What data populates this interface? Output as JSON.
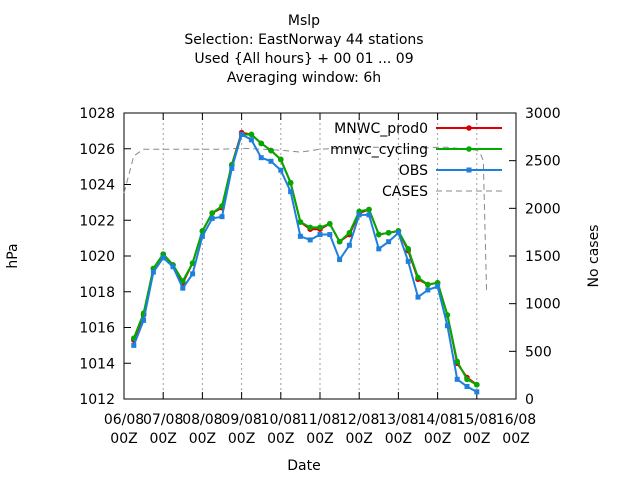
{
  "chart_data": {
    "type": "line",
    "title_lines": [
      "Mslp",
      "Selection: EastNorway     44 stations",
      "Used {All hours} + 00 01 ... 09",
      "Averaging window:  6h"
    ],
    "xlabel": "Date",
    "ylabel": "hPa",
    "y2label": "No cases",
    "xlim": [
      0,
      240
    ],
    "ylim": [
      1012,
      1028
    ],
    "y2lim": [
      0,
      3000
    ],
    "x_ticks": [
      {
        "x": 0,
        "line1": "06/08",
        "line2": "00Z"
      },
      {
        "x": 24,
        "line1": "07/08",
        "line2": "00Z"
      },
      {
        "x": 48,
        "line1": "08/08",
        "line2": "00Z"
      },
      {
        "x": 72,
        "line1": "09/08",
        "line2": "00Z"
      },
      {
        "x": 96,
        "line1": "10/08",
        "line2": "00Z"
      },
      {
        "x": 120,
        "line1": "11/08",
        "line2": "00Z"
      },
      {
        "x": 144,
        "line1": "12/08",
        "line2": "00Z"
      },
      {
        "x": 168,
        "line1": "13/08",
        "line2": "00Z"
      },
      {
        "x": 192,
        "line1": "14/08",
        "line2": "00Z"
      },
      {
        "x": 216,
        "line1": "15/08",
        "line2": "00Z"
      },
      {
        "x": 240,
        "line1": "16/08",
        "line2": "00Z"
      }
    ],
    "y_ticks": [
      1012,
      1014,
      1016,
      1018,
      1020,
      1022,
      1024,
      1026,
      1028
    ],
    "y2_ticks": [
      0,
      500,
      1000,
      1500,
      2000,
      2500,
      3000
    ],
    "legend_position": "top-right",
    "series": [
      {
        "name": "MNWC_prod0",
        "color": "#dd0000",
        "marker": "circle",
        "axis": "y",
        "x": [
          6,
          12,
          18,
          24,
          30,
          36,
          42,
          48,
          54,
          60,
          66,
          72,
          78,
          84,
          90,
          96,
          102,
          108,
          114,
          120,
          126,
          132,
          138,
          144,
          150,
          156,
          162,
          168,
          174,
          180,
          186,
          192,
          198,
          204,
          210,
          216,
          222
        ],
        "y": [
          1015.3,
          1016.7,
          1019.3,
          1020.1,
          1019.5,
          1018.5,
          1019.6,
          1021.4,
          1022.4,
          1022.7,
          1025.1,
          1026.9,
          1026.8,
          1026.3,
          1025.9,
          1025.4,
          1024.1,
          1021.9,
          1021.5,
          1021.5,
          1021.8,
          1020.8,
          1021.2,
          1022.4,
          1022.6,
          1021.2,
          1021.3,
          1021.4,
          1020.3,
          1018.7,
          1018.4,
          1018.5,
          1016.7,
          1014.0,
          1013.2,
          1012.8,
          null
        ]
      },
      {
        "name": "mnwc_cycling",
        "color": "#00aa00",
        "marker": "circle",
        "axis": "y",
        "x": [
          6,
          12,
          18,
          24,
          30,
          36,
          42,
          48,
          54,
          60,
          66,
          72,
          78,
          84,
          90,
          96,
          102,
          108,
          114,
          120,
          126,
          132,
          138,
          144,
          150,
          156,
          162,
          168,
          174,
          180,
          186,
          192,
          198,
          204,
          210,
          216,
          222
        ],
        "y": [
          1015.4,
          1016.8,
          1019.3,
          1020.1,
          1019.5,
          1018.6,
          1019.6,
          1021.4,
          1022.4,
          1022.8,
          1025.1,
          1026.8,
          1026.8,
          1026.3,
          1025.9,
          1025.4,
          1024.1,
          1021.9,
          1021.6,
          1021.6,
          1021.8,
          1020.8,
          1021.3,
          1022.5,
          1022.6,
          1021.2,
          1021.3,
          1021.4,
          1020.4,
          1018.8,
          1018.4,
          1018.5,
          1016.7,
          1014.1,
          1013.1,
          1012.8,
          null
        ]
      },
      {
        "name": "OBS",
        "color": "#1e7fdd",
        "marker": "square",
        "axis": "y",
        "x": [
          6,
          12,
          18,
          24,
          30,
          36,
          42,
          48,
          54,
          60,
          66,
          72,
          78,
          84,
          90,
          96,
          102,
          108,
          114,
          120,
          126,
          132,
          138,
          144,
          150,
          156,
          162,
          168,
          174,
          180,
          186,
          192,
          198,
          204,
          210,
          216,
          222
        ],
        "y": [
          1015.0,
          1016.4,
          1019.1,
          1019.9,
          1019.4,
          1018.2,
          1019.0,
          1021.1,
          1022.1,
          1022.2,
          1024.9,
          1026.8,
          1026.5,
          1025.5,
          1025.3,
          1024.8,
          1023.6,
          1021.1,
          1020.9,
          1021.2,
          1021.2,
          1019.8,
          1020.6,
          1022.3,
          1022.3,
          1020.4,
          1020.8,
          1021.3,
          1019.7,
          1017.7,
          1018.1,
          1018.3,
          1016.1,
          1013.1,
          1012.7,
          1012.4,
          null
        ]
      },
      {
        "name": "CASES",
        "color": "#888888",
        "marker": "none",
        "dash": "dashed",
        "axis": "y2",
        "x": [
          0,
          6,
          12,
          24,
          36,
          48,
          60,
          72,
          84,
          96,
          108,
          120,
          132,
          144,
          156,
          168,
          180,
          192,
          198,
          204,
          210,
          216,
          218,
          220,
          222
        ],
        "y": [
          2160,
          2550,
          2620,
          2620,
          2620,
          2620,
          2620,
          2630,
          2620,
          2610,
          2590,
          2620,
          2630,
          2640,
          2640,
          2640,
          2630,
          2640,
          2640,
          2630,
          2620,
          2610,
          2580,
          2500,
          1120
        ]
      }
    ]
  }
}
